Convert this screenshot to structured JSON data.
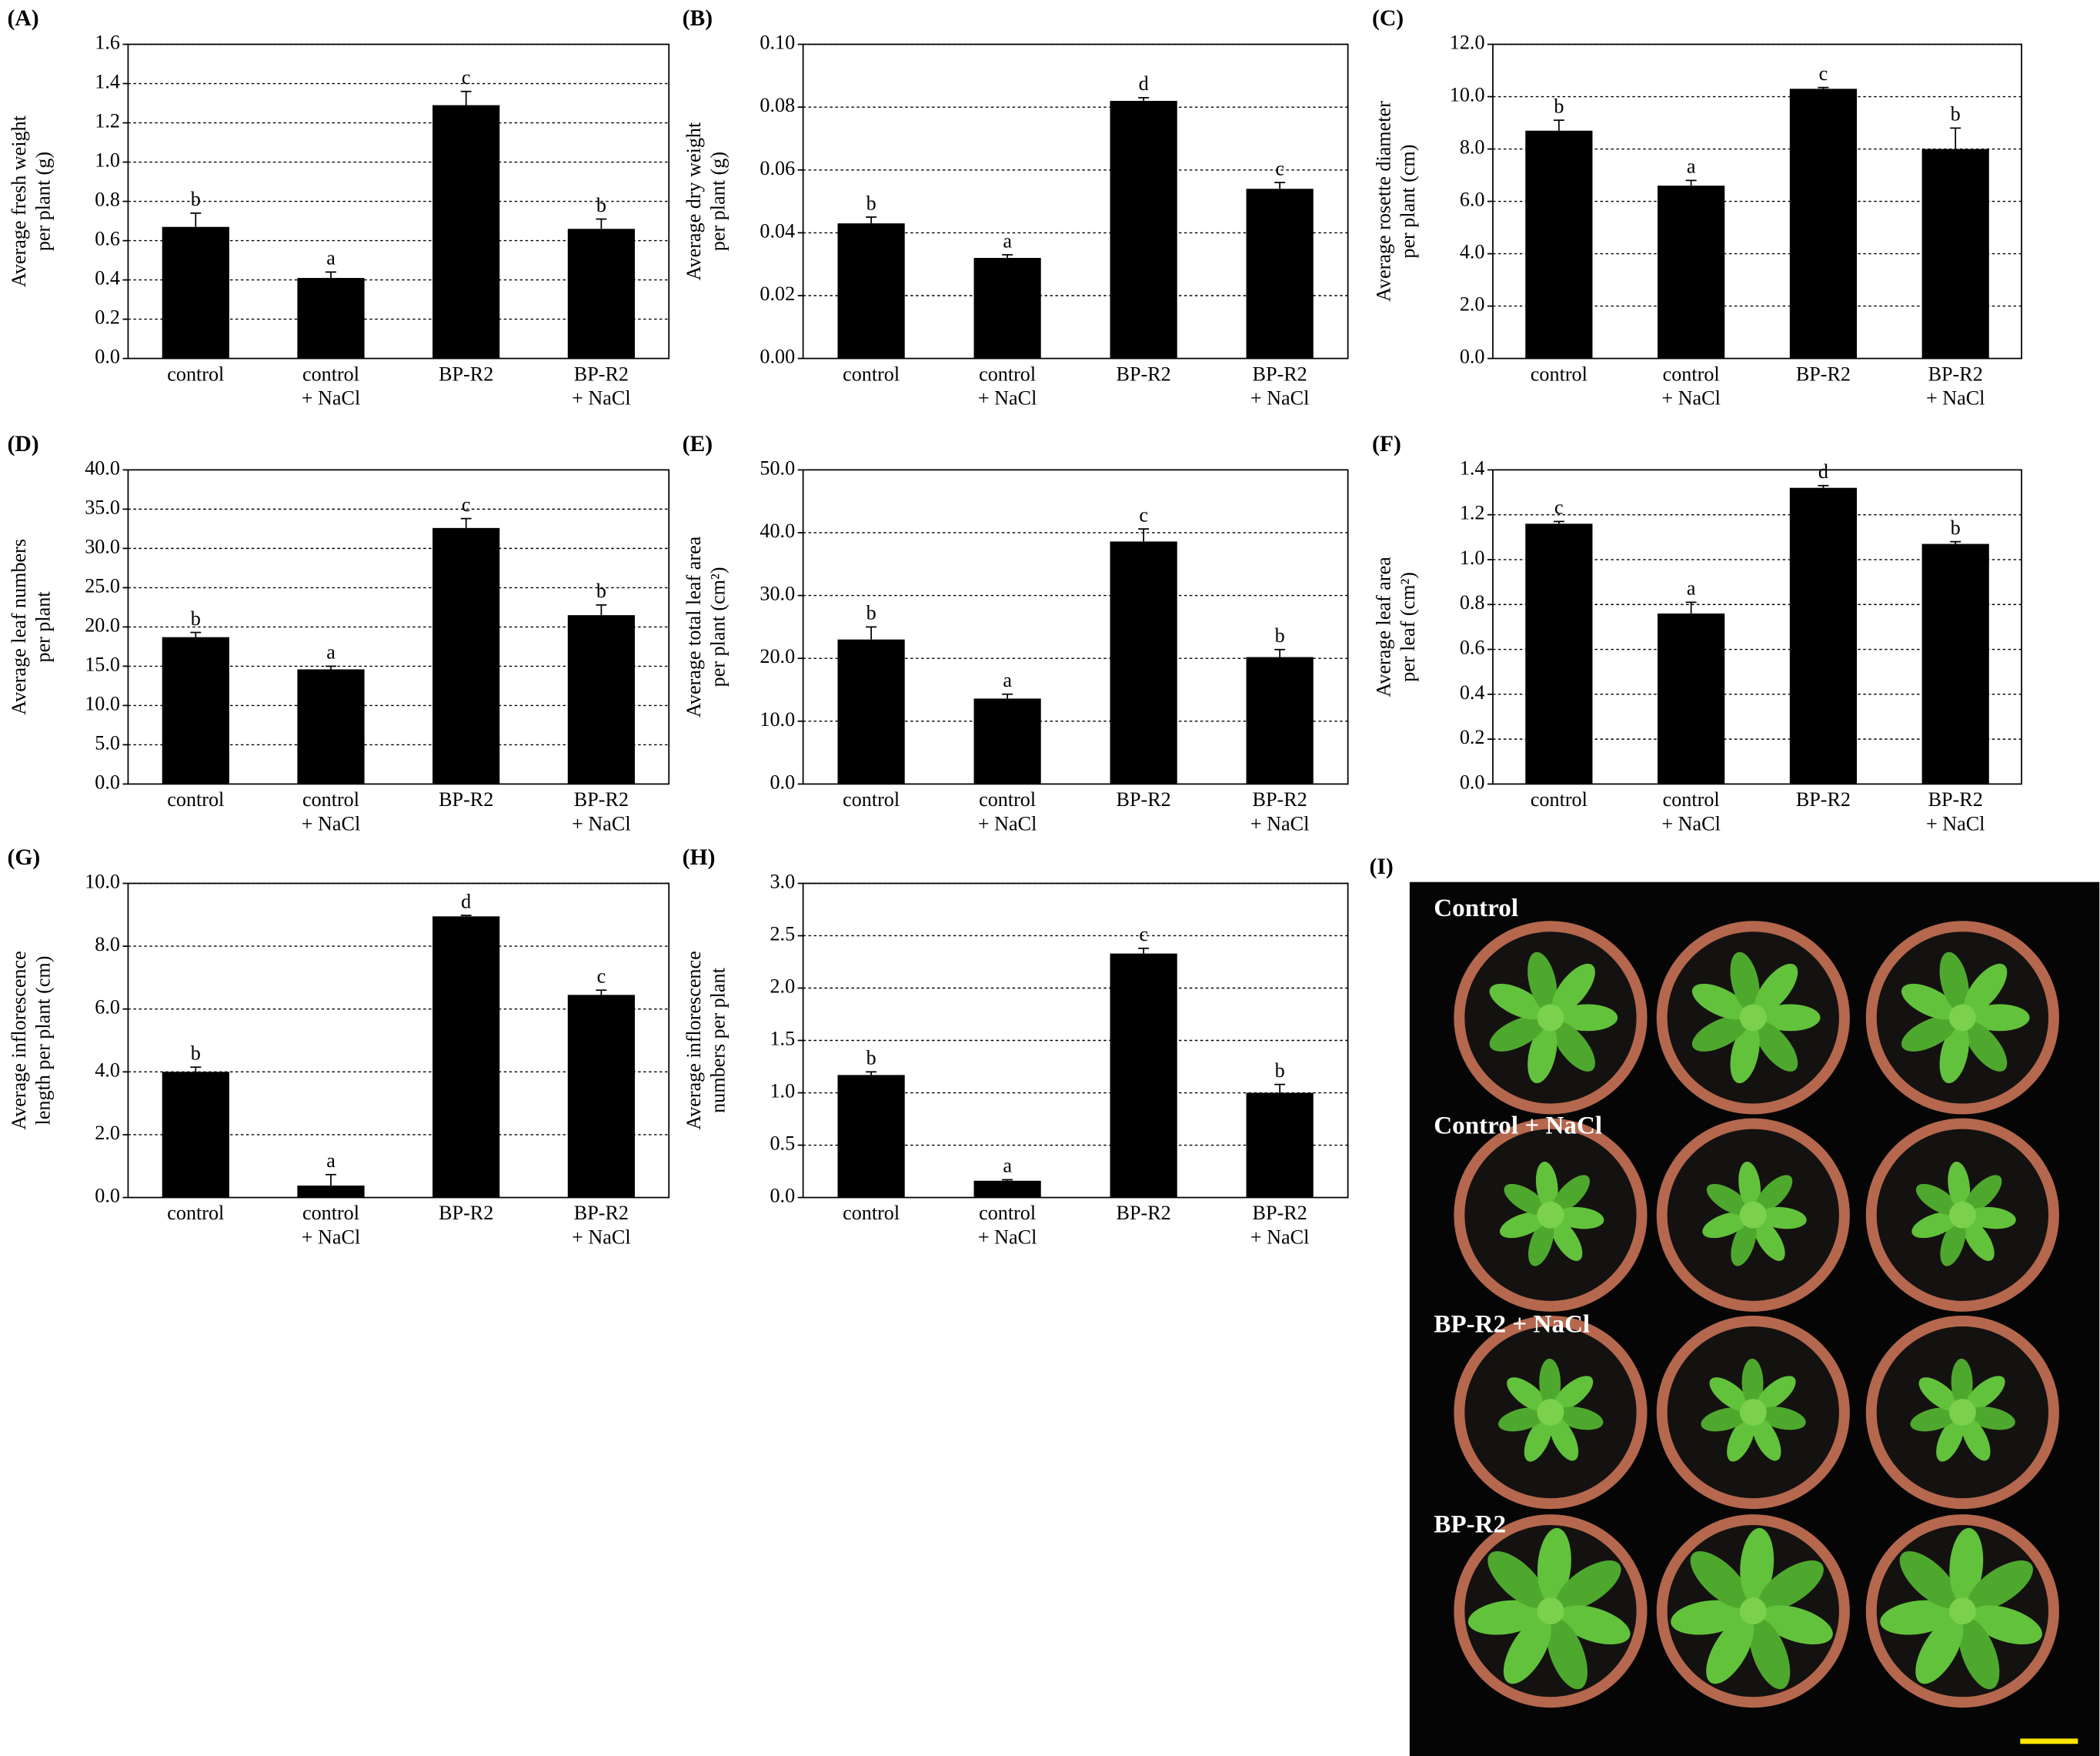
{
  "chart_data": [
    {
      "type": "bar",
      "panel": "(A)",
      "ylabel": [
        "Average fresh weight",
        "per plant (g)"
      ],
      "categories": [
        [
          "control"
        ],
        [
          "control",
          "+ NaCl"
        ],
        [
          "BP-R2"
        ],
        [
          "BP-R2",
          "+ NaCl"
        ]
      ],
      "values": [
        0.67,
        0.41,
        1.29,
        0.66
      ],
      "errors": [
        0.07,
        0.03,
        0.07,
        0.05
      ],
      "letters": [
        "b",
        "a",
        "c",
        "b"
      ],
      "color": "#000000",
      "ylim": [
        0,
        1.6
      ],
      "yticks": [
        {
          "value": 0,
          "label": "0.0"
        },
        0.2,
        0.4,
        0.6,
        0.8,
        {
          "value": 1,
          "label": "1.0"
        },
        1.2,
        1.4,
        1.6
      ],
      "grid": true
    },
    {
      "type": "bar",
      "panel": "(B)",
      "ylabel": [
        "Average dry weight",
        "per plant (g)"
      ],
      "categories": [
        [
          "control"
        ],
        [
          "control",
          "+ NaCl"
        ],
        [
          "BP-R2"
        ],
        [
          "BP-R2",
          "+ NaCl"
        ]
      ],
      "values": [
        0.043,
        0.032,
        0.082,
        0.054
      ],
      "errors": [
        0.002,
        0.001,
        0.001,
        0.002
      ],
      "letters": [
        "b",
        "a",
        "d",
        "c"
      ],
      "color": "#000000",
      "ylim": [
        0,
        0.1
      ],
      "yticks": [
        {
          "value": 0,
          "label": "0.00"
        },
        0.02,
        0.04,
        0.06,
        0.08,
        {
          "value": 0.1,
          "label": "0.10"
        }
      ],
      "grid": true
    },
    {
      "type": "bar",
      "panel": "(C)",
      "ylabel": [
        "Average rosette diameter",
        "per plant (cm)"
      ],
      "categories": [
        [
          "control"
        ],
        [
          "control",
          "+ NaCl"
        ],
        [
          "BP-R2"
        ],
        [
          "BP-R2",
          "+ NaCl"
        ]
      ],
      "values": [
        8.7,
        6.6,
        10.3,
        8.0
      ],
      "errors": [
        0.4,
        0.2,
        0.05,
        0.8
      ],
      "letters": [
        "b",
        "a",
        "c",
        "b"
      ],
      "color": "#000000",
      "ylim": [
        0,
        12
      ],
      "yticks": [
        {
          "value": 0,
          "label": "0.0"
        },
        {
          "value": 2,
          "label": "2.0"
        },
        {
          "value": 4,
          "label": "4.0"
        },
        {
          "value": 6,
          "label": "6.0"
        },
        {
          "value": 8,
          "label": "8.0"
        },
        {
          "value": 10,
          "label": "10.0"
        },
        {
          "value": 12,
          "label": "12.0"
        }
      ],
      "grid": true
    },
    {
      "type": "bar",
      "panel": "(D)",
      "ylabel": [
        "Average leaf numbers",
        "per plant"
      ],
      "categories": [
        [
          "control"
        ],
        [
          "control",
          "+ NaCl"
        ],
        [
          "BP-R2"
        ],
        [
          "BP-R2",
          "+ NaCl"
        ]
      ],
      "values": [
        18.7,
        14.6,
        32.6,
        21.5
      ],
      "errors": [
        0.6,
        0.4,
        1.2,
        1.3
      ],
      "letters": [
        "b",
        "a",
        "c",
        "b"
      ],
      "color": "#000000",
      "ylim": [
        0,
        40
      ],
      "yticks": [
        {
          "value": 0,
          "label": "0.0"
        },
        {
          "value": 5,
          "label": "5.0"
        },
        {
          "value": 10,
          "label": "10.0"
        },
        {
          "value": 15,
          "label": "15.0"
        },
        {
          "value": 20,
          "label": "20.0"
        },
        {
          "value": 25,
          "label": "25.0"
        },
        {
          "value": 30,
          "label": "30.0"
        },
        {
          "value": 35,
          "label": "35.0"
        },
        {
          "value": 40,
          "label": "40.0"
        }
      ],
      "grid": true
    },
    {
      "type": "bar",
      "panel": "(E)",
      "ylabel": [
        "Average total leaf area",
        "per plant (cm²)"
      ],
      "categories": [
        [
          "control"
        ],
        [
          "control",
          "+ NaCl"
        ],
        [
          "BP-R2"
        ],
        [
          "BP-R2",
          "+ NaCl"
        ]
      ],
      "values": [
        23,
        13.6,
        38.6,
        20.2
      ],
      "errors": [
        2,
        0.7,
        2,
        1.2
      ],
      "letters": [
        "b",
        "a",
        "c",
        "b"
      ],
      "color": "#000000",
      "ylim": [
        0,
        50
      ],
      "yticks": [
        {
          "value": 0,
          "label": "0.0"
        },
        {
          "value": 10,
          "label": "10.0"
        },
        {
          "value": 20,
          "label": "20.0"
        },
        {
          "value": 30,
          "label": "30.0"
        },
        {
          "value": 40,
          "label": "40.0"
        },
        {
          "value": 50,
          "label": "50.0"
        }
      ],
      "grid": true
    },
    {
      "type": "bar",
      "panel": "(F)",
      "ylabel": [
        "Average leaf area",
        "per leaf (cm²)"
      ],
      "categories": [
        [
          "control"
        ],
        [
          "control",
          "+ NaCl"
        ],
        [
          "BP-R2"
        ],
        [
          "BP-R2",
          "+ NaCl"
        ]
      ],
      "values": [
        1.16,
        0.76,
        1.32,
        1.07
      ],
      "errors": [
        0.01,
        0.05,
        0.01,
        0.01
      ],
      "letters": [
        "c",
        "a",
        "d",
        "b"
      ],
      "color": "#000000",
      "ylim": [
        0,
        1.4
      ],
      "yticks": [
        {
          "value": 0,
          "label": "0.0"
        },
        0.2,
        0.4,
        0.6,
        0.8,
        {
          "value": 1,
          "label": "1.0"
        },
        1.2,
        1.4
      ],
      "grid": true
    },
    {
      "type": "bar",
      "panel": "(G)",
      "ylabel": [
        "Average inflorescence",
        "length per plant (cm)"
      ],
      "categories": [
        [
          "control"
        ],
        [
          "control",
          "+ NaCl"
        ],
        [
          "BP-R2"
        ],
        [
          "BP-R2",
          "+ NaCl"
        ]
      ],
      "values": [
        4.0,
        0.38,
        8.95,
        6.45
      ],
      "errors": [
        0.15,
        0.35,
        0.03,
        0.15
      ],
      "letters": [
        "b",
        "a",
        "d",
        "c"
      ],
      "color": "#000000",
      "ylim": [
        0,
        10
      ],
      "yticks": [
        {
          "value": 0,
          "label": "0.0"
        },
        {
          "value": 2,
          "label": "2.0"
        },
        {
          "value": 4,
          "label": "4.0"
        },
        {
          "value": 6,
          "label": "6.0"
        },
        {
          "value": 8,
          "label": "8.0"
        },
        {
          "value": 10,
          "label": "10.0"
        }
      ],
      "grid": true
    },
    {
      "type": "bar",
      "panel": "(H)",
      "ylabel": [
        "Average inflorescence",
        "numbers per plant"
      ],
      "categories": [
        [
          "control"
        ],
        [
          "control",
          "+ NaCl"
        ],
        [
          "BP-R2"
        ],
        [
          "BP-R2",
          "+ NaCl"
        ]
      ],
      "values": [
        1.17,
        0.16,
        2.33,
        1.0
      ],
      "errors": [
        0.03,
        0.01,
        0.05,
        0.08
      ],
      "letters": [
        "b",
        "a",
        "c",
        "b"
      ],
      "color": "#000000",
      "ylim": [
        0,
        3
      ],
      "yticks": [
        {
          "value": 0,
          "label": "0.0"
        },
        0.5,
        {
          "value": 1,
          "label": "1.0"
        },
        1.5,
        {
          "value": 2,
          "label": "2.0"
        },
        2.5,
        {
          "value": 3,
          "label": "3.0"
        }
      ],
      "grid": true
    }
  ],
  "photo": {
    "panel": "(I)",
    "labels": [
      "Control",
      "Control + NaCl",
      "BP-R2 + NaCl",
      "BP-R2"
    ]
  }
}
